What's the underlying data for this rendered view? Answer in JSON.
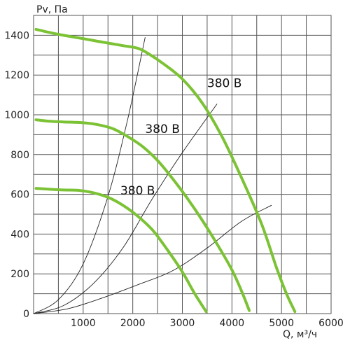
{
  "chart_data": {
    "type": "line",
    "ylabel": "Pv, Па",
    "xlabel": "Q, м³/ч",
    "xlim": [
      0,
      6000
    ],
    "ylim": [
      0,
      1500
    ],
    "x_ticks": [
      1000,
      2000,
      3000,
      4000,
      5000,
      6000
    ],
    "y_ticks": [
      0,
      200,
      400,
      600,
      800,
      1000,
      1200,
      1400
    ],
    "grid": true,
    "series": [
      {
        "kind": "fan-curve",
        "color": "#7cc235",
        "points": [
          [
            50,
            1430
          ],
          [
            300,
            1415
          ],
          [
            600,
            1400
          ],
          [
            1000,
            1383
          ],
          [
            1400,
            1365
          ],
          [
            1800,
            1348
          ],
          [
            2100,
            1335
          ],
          [
            2300,
            1310
          ],
          [
            2600,
            1260
          ],
          [
            3000,
            1180
          ],
          [
            3400,
            1060
          ],
          [
            3800,
            890
          ],
          [
            4200,
            680
          ],
          [
            4600,
            450
          ],
          [
            4900,
            230
          ],
          [
            5100,
            100
          ],
          [
            5270,
            10
          ]
        ]
      },
      {
        "kind": "fan-curve",
        "color": "#7cc235",
        "points": [
          [
            50,
            975
          ],
          [
            300,
            968
          ],
          [
            600,
            964
          ],
          [
            1000,
            960
          ],
          [
            1300,
            950
          ],
          [
            1600,
            930
          ],
          [
            1900,
            890
          ],
          [
            2200,
            840
          ],
          [
            2500,
            770
          ],
          [
            2800,
            680
          ],
          [
            3100,
            580
          ],
          [
            3400,
            470
          ],
          [
            3700,
            350
          ],
          [
            4000,
            220
          ],
          [
            4200,
            110
          ],
          [
            4350,
            15
          ]
        ]
      },
      {
        "kind": "fan-curve",
        "color": "#7cc235",
        "points": [
          [
            50,
            630
          ],
          [
            300,
            626
          ],
          [
            600,
            622
          ],
          [
            900,
            620
          ],
          [
            1200,
            608
          ],
          [
            1500,
            585
          ],
          [
            1800,
            545
          ],
          [
            2100,
            490
          ],
          [
            2400,
            420
          ],
          [
            2700,
            320
          ],
          [
            3000,
            210
          ],
          [
            3250,
            100
          ],
          [
            3480,
            10
          ]
        ]
      },
      {
        "kind": "system-curve",
        "color": "#222222",
        "points": [
          [
            0,
            0
          ],
          [
            500,
            70
          ],
          [
            1000,
            250
          ],
          [
            1500,
            590
          ],
          [
            1900,
            980
          ],
          [
            2250,
            1390
          ]
        ]
      },
      {
        "kind": "system-curve",
        "color": "#222222",
        "points": [
          [
            0,
            0
          ],
          [
            600,
            40
          ],
          [
            1200,
            150
          ],
          [
            1800,
            330
          ],
          [
            2400,
            580
          ],
          [
            3000,
            810
          ],
          [
            3700,
            1055
          ]
        ]
      },
      {
        "kind": "system-curve",
        "color": "#222222",
        "points": [
          [
            0,
            0
          ],
          [
            700,
            25
          ],
          [
            1400,
            80
          ],
          [
            2100,
            145
          ],
          [
            2800,
            215
          ],
          [
            3500,
            330
          ],
          [
            4200,
            465
          ],
          [
            4800,
            545
          ]
        ]
      }
    ],
    "annotations": [
      {
        "text": "380 В",
        "x": 3500,
        "y": 1160
      },
      {
        "text": "380 В",
        "x": 2250,
        "y": 930
      },
      {
        "text": "380 В",
        "x": 1750,
        "y": 620
      }
    ]
  }
}
